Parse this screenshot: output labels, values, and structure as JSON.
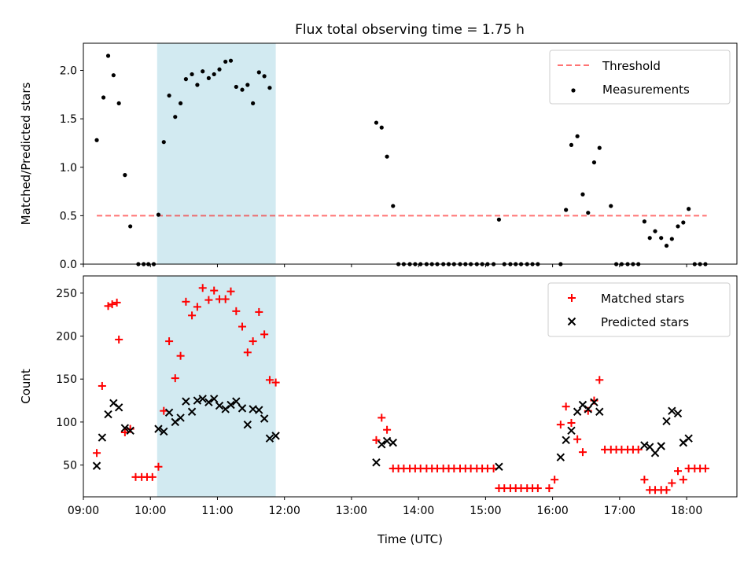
{
  "title": "Flux total observing time = 1.75 h",
  "colors": {
    "shade": "#add8e6",
    "threshold": "#ff0000",
    "measurement": "#000000",
    "matched": "#ff0000",
    "predicted": "#000000"
  },
  "chart_data": [
    {
      "type": "scatter",
      "panel": "top",
      "ylabel": "Matched/Predicted stars",
      "xlabel": "",
      "xlim": [
        9.0,
        18.75
      ],
      "ylim": [
        0.0,
        2.28
      ],
      "yticks": [
        0.0,
        0.5,
        1.0,
        1.5,
        2.0
      ],
      "ytick_labels": [
        "0.0",
        "0.5",
        "1.0",
        "1.5",
        "2.0"
      ],
      "grid": false,
      "legend_location": "top-right",
      "shaded_span": [
        10.1,
        11.87
      ],
      "threshold": {
        "name": "Threshold",
        "y": 0.5,
        "x_range": [
          9.2,
          18.3
        ]
      },
      "series": [
        {
          "name": "Measurements",
          "marker": "dot",
          "x": [
            9.2,
            9.3,
            9.37,
            9.45,
            9.53,
            9.62,
            9.7,
            9.82,
            9.9,
            9.97,
            10.05,
            10.12,
            10.2,
            10.28,
            10.37,
            10.45,
            10.53,
            10.62,
            10.7,
            10.78,
            10.87,
            10.95,
            11.03,
            11.12,
            11.2,
            11.28,
            11.37,
            11.45,
            11.53,
            11.62,
            11.7,
            11.78,
            13.37,
            13.45,
            13.53,
            13.62,
            13.7,
            13.78,
            13.87,
            13.95,
            14.03,
            14.12,
            14.2,
            14.28,
            14.37,
            14.45,
            14.53,
            14.62,
            14.7,
            14.78,
            14.87,
            14.95,
            15.03,
            15.12,
            15.2,
            15.28,
            15.37,
            15.45,
            15.53,
            15.62,
            15.7,
            15.78,
            16.12,
            16.2,
            16.28,
            16.37,
            16.45,
            16.53,
            16.62,
            16.7,
            16.87,
            16.95,
            17.03,
            17.12,
            17.2,
            17.28,
            17.37,
            17.45,
            17.53,
            17.62,
            17.7,
            17.78,
            17.87,
            17.95,
            18.03,
            18.12,
            18.2,
            18.28
          ],
          "y": [
            1.28,
            1.72,
            2.15,
            1.95,
            1.66,
            0.92,
            0.39,
            0.0,
            0.0,
            0.0,
            0.0,
            0.51,
            1.26,
            1.74,
            1.52,
            1.66,
            1.91,
            1.96,
            1.85,
            1.99,
            1.92,
            1.96,
            2.01,
            2.09,
            2.1,
            1.83,
            1.8,
            1.85,
            1.66,
            1.98,
            1.94,
            1.82,
            1.46,
            1.41,
            1.11,
            0.6,
            0.0,
            0.0,
            0.0,
            0.0,
            0.0,
            0.0,
            0.0,
            0.0,
            0.0,
            0.0,
            0.0,
            0.0,
            0.0,
            0.0,
            0.0,
            0.0,
            0.0,
            0.0,
            0.46,
            0.0,
            0.0,
            0.0,
            0.0,
            0.0,
            0.0,
            0.0,
            0.0,
            0.56,
            1.23,
            1.32,
            0.72,
            0.53,
            1.05,
            1.2,
            0.6,
            0.0,
            0.0,
            0.0,
            0.0,
            0.0,
            0.44,
            0.27,
            0.34,
            0.27,
            0.19,
            0.26,
            0.39,
            0.43,
            0.57,
            0.0,
            0.0,
            0.0
          ]
        }
      ]
    },
    {
      "type": "scatter",
      "panel": "bottom",
      "ylabel": "Count",
      "xlabel": "Time (UTC)",
      "xlim": [
        9.0,
        18.75
      ],
      "ylim": [
        13,
        270
      ],
      "yticks": [
        50,
        100,
        150,
        200,
        250
      ],
      "ytick_labels": [
        "50",
        "100",
        "150",
        "200",
        "250"
      ],
      "xticks": [
        9,
        10,
        11,
        12,
        13,
        14,
        15,
        16,
        17,
        18
      ],
      "xtick_labels": [
        "09:00",
        "10:00",
        "11:00",
        "12:00",
        "13:00",
        "14:00",
        "15:00",
        "16:00",
        "17:00",
        "18:00"
      ],
      "grid": false,
      "legend_location": "top-right",
      "shaded_span": [
        10.1,
        11.87
      ],
      "series": [
        {
          "name": "Matched stars",
          "marker": "plus",
          "x": [
            9.2,
            9.28,
            9.37,
            9.43,
            9.5,
            9.53,
            9.62,
            9.7,
            9.78,
            9.87,
            9.95,
            10.03,
            10.12,
            10.2,
            10.28,
            10.37,
            10.45,
            10.53,
            10.62,
            10.7,
            10.78,
            10.87,
            10.95,
            11.03,
            11.12,
            11.2,
            11.28,
            11.37,
            11.45,
            11.53,
            11.62,
            11.7,
            11.78,
            11.87,
            13.37,
            13.45,
            13.53,
            13.62,
            13.7,
            13.78,
            13.87,
            13.95,
            14.03,
            14.12,
            14.2,
            14.28,
            14.37,
            14.45,
            14.53,
            14.62,
            14.7,
            14.78,
            14.87,
            14.95,
            15.03,
            15.12,
            15.2,
            15.28,
            15.37,
            15.45,
            15.53,
            15.62,
            15.7,
            15.78,
            15.95,
            16.03,
            16.12,
            16.2,
            16.28,
            16.37,
            16.45,
            16.53,
            16.62,
            16.7,
            16.78,
            16.87,
            16.95,
            17.03,
            17.12,
            17.2,
            17.28,
            17.37,
            17.45,
            17.53,
            17.62,
            17.7,
            17.78,
            17.87,
            17.95,
            18.03,
            18.12,
            18.2,
            18.28
          ],
          "y": [
            64,
            142,
            235,
            237,
            239,
            196,
            88,
            92,
            36,
            36,
            36,
            36,
            48,
            113,
            194,
            151,
            177,
            240,
            224,
            234,
            256,
            242,
            253,
            243,
            243,
            252,
            229,
            211,
            181,
            194,
            228,
            202,
            149,
            146,
            79,
            105,
            91,
            46,
            46,
            46,
            46,
            46,
            46,
            46,
            46,
            46,
            46,
            46,
            46,
            46,
            46,
            46,
            46,
            46,
            46,
            46,
            23,
            23,
            23,
            23,
            23,
            23,
            23,
            23,
            23,
            33,
            97,
            118,
            99,
            80,
            65,
            113,
            125,
            149,
            68,
            68,
            68,
            68,
            68,
            68,
            68,
            33,
            21,
            21,
            21,
            21,
            29,
            43,
            33,
            46,
            46,
            46,
            46
          ]
        },
        {
          "name": "Predicted stars",
          "marker": "x",
          "x": [
            9.2,
            9.28,
            9.37,
            9.45,
            9.53,
            9.62,
            9.7,
            10.12,
            10.2,
            10.28,
            10.37,
            10.45,
            10.53,
            10.62,
            10.7,
            10.78,
            10.87,
            10.95,
            11.03,
            11.12,
            11.2,
            11.28,
            11.37,
            11.45,
            11.53,
            11.62,
            11.7,
            11.78,
            11.87,
            13.37,
            13.45,
            13.53,
            13.62,
            15.2,
            16.12,
            16.2,
            16.28,
            16.37,
            16.45,
            16.53,
            16.62,
            16.7,
            17.37,
            17.45,
            17.53,
            17.62,
            17.7,
            17.78,
            17.87,
            17.95,
            18.03
          ],
          "y": [
            49,
            82,
            109,
            122,
            117,
            93,
            90,
            92,
            89,
            111,
            100,
            105,
            124,
            112,
            125,
            127,
            123,
            127,
            119,
            115,
            120,
            124,
            116,
            97,
            115,
            114,
            104,
            81,
            84,
            53,
            74,
            78,
            76,
            48,
            59,
            79,
            90,
            112,
            120,
            115,
            123,
            112,
            73,
            71,
            64,
            72,
            101,
            113,
            110,
            76,
            81
          ]
        }
      ]
    }
  ]
}
